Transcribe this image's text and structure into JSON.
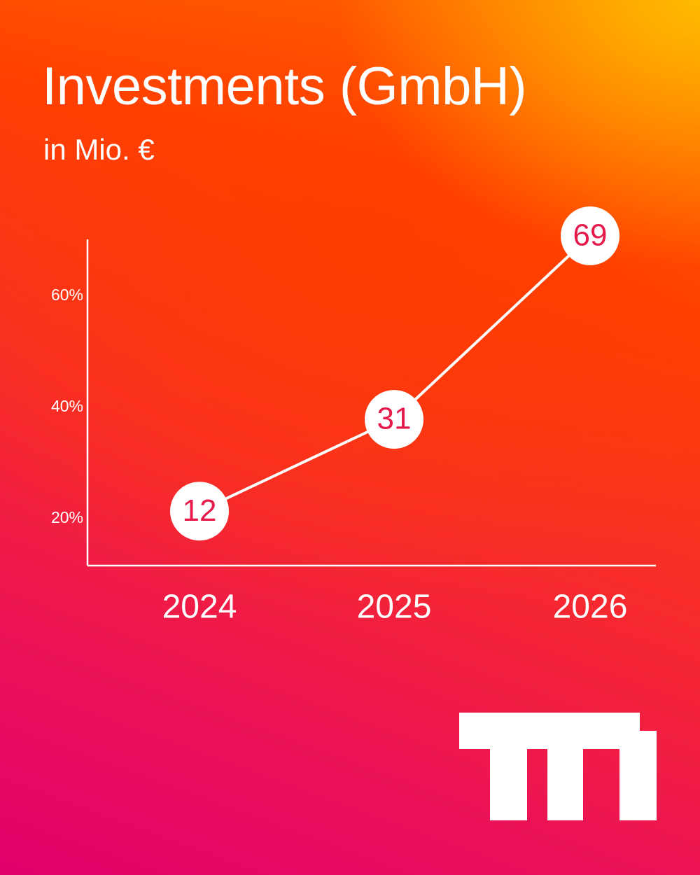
{
  "header": {
    "title": "Investments (GmbH)",
    "subtitle": "in Mio. €"
  },
  "chart_data": {
    "type": "line",
    "title": "Investments (GmbH)",
    "subtitle": "in Mio. €",
    "x": [
      "2024",
      "2025",
      "2026"
    ],
    "values": [
      12,
      31,
      69
    ],
    "y_tick_labels": [
      "20%",
      "40%",
      "60%"
    ],
    "grid": false,
    "legend": "none",
    "line_color": "#ffffff",
    "marker_fill": "#ffffff",
    "data_label_color": "#e5194a"
  },
  "colors": {
    "gradient_top_right": "#ffb800",
    "gradient_mid": "#ff4200",
    "gradient_bottom_left": "#e2006c",
    "foreground": "#ffffff"
  },
  "logo": {
    "icon": "brand-logo-icon"
  }
}
